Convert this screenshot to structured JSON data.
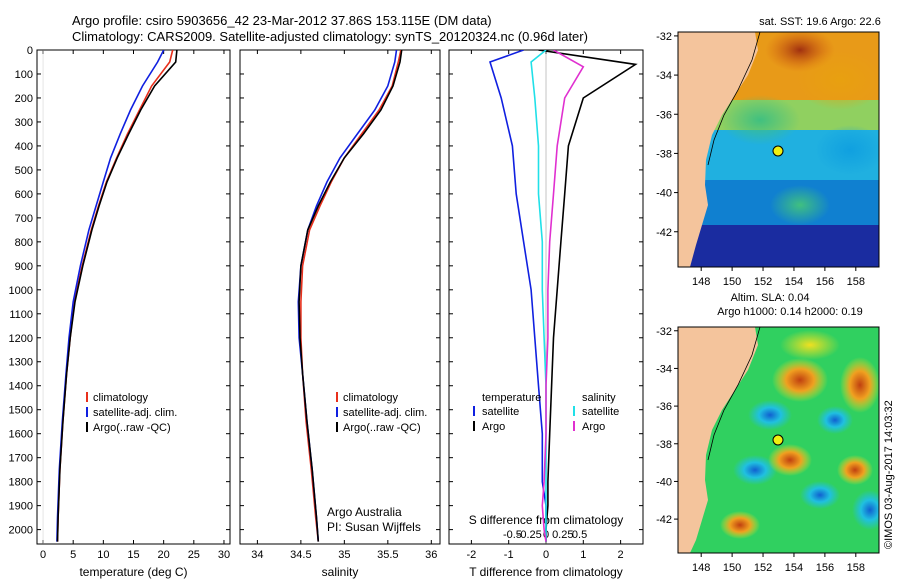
{
  "header": {
    "line1": "Argo profile: csiro 5903656_42 23-Mar-2012 37.86S 153.115E (DM data)",
    "line2": "Climatology: CARS2009. Satellite-adjusted climatology: synTS_20120324.nc (0.96d later)"
  },
  "credits": {
    "org": "Argo Australia",
    "pi": "PI: Susan Wijffels",
    "stamp": "©IMOS 03-Aug-2017 14:03:32"
  },
  "colors": {
    "clim": "#e8301c",
    "sat": "#1020e0",
    "argo": "#000000",
    "sat_s": "#20e0e8",
    "argo_s": "#e030d0",
    "land": "#f4c49c",
    "ocean_warm": "#f0a020",
    "ocean_cool": "#20c0e0"
  },
  "chart_data": [
    {
      "id": "temperature",
      "type": "line",
      "xlabel": "temperature (deg C)",
      "ylabel": "",
      "xlim": [
        -1,
        31
      ],
      "ylim": [
        2060,
        0
      ],
      "xticks": [
        "0",
        "5",
        "10",
        "15",
        "20",
        "25",
        "30"
      ],
      "yticks": [
        "0",
        "100",
        "200",
        "300",
        "400",
        "500",
        "600",
        "700",
        "800",
        "900",
        "1000",
        "1100",
        "1200",
        "1300",
        "1400",
        "1500",
        "1600",
        "1700",
        "1800",
        "1900",
        "2000"
      ],
      "legend": [
        "climatology",
        "satellite-adj. clim.",
        "Argo(..raw -QC)"
      ],
      "series": [
        {
          "name": "climatology",
          "color": "#e8301c",
          "x": [
            21.5,
            21.0,
            18.0,
            16.0,
            14.0,
            12.2,
            10.5,
            9.2,
            8.0,
            6.5,
            5.2,
            4.5,
            3.9,
            3.3,
            2.8,
            2.5,
            2.4
          ],
          "y": [
            0,
            50,
            150,
            250,
            350,
            450,
            550,
            650,
            750,
            900,
            1050,
            1200,
            1350,
            1550,
            1750,
            1950,
            2050
          ]
        },
        {
          "name": "satellite-adj. clim.",
          "color": "#1020e0",
          "x": [
            20.0,
            19.0,
            16.5,
            14.5,
            12.8,
            11.2,
            10.0,
            8.8,
            7.6,
            6.2,
            5.0,
            4.3,
            3.8,
            3.2,
            2.7,
            2.4,
            2.3
          ],
          "y": [
            0,
            50,
            150,
            250,
            350,
            450,
            550,
            650,
            750,
            900,
            1050,
            1200,
            1350,
            1550,
            1750,
            1950,
            2050
          ]
        },
        {
          "name": "Argo(..raw -QC)",
          "color": "#000000",
          "x": [
            22.2,
            22.0,
            18.5,
            16.2,
            14.2,
            12.3,
            10.6,
            9.3,
            8.1,
            6.6,
            5.3,
            4.5,
            3.9,
            3.3,
            2.8,
            2.5,
            2.4
          ],
          "y": [
            0,
            50,
            150,
            250,
            350,
            450,
            550,
            650,
            750,
            900,
            1050,
            1200,
            1350,
            1550,
            1750,
            1950,
            2050
          ]
        }
      ]
    },
    {
      "id": "salinity",
      "type": "line",
      "xlabel": "salinity",
      "xlim": [
        33.8,
        36.1
      ],
      "ylim": [
        2060,
        0
      ],
      "xticks": [
        "34",
        "34.5",
        "35",
        "35.5",
        "36"
      ],
      "legend": [
        "climatology",
        "satellite-adj. clim.",
        "Argo(..raw -QC)"
      ],
      "series": [
        {
          "name": "climatology",
          "color": "#e8301c",
          "x": [
            35.65,
            35.62,
            35.55,
            35.4,
            35.2,
            35.0,
            34.85,
            34.72,
            34.6,
            34.52,
            34.5,
            34.5,
            34.52,
            34.56,
            34.62,
            34.67,
            34.7
          ],
          "y": [
            0,
            50,
            150,
            250,
            350,
            450,
            550,
            650,
            750,
            900,
            1050,
            1200,
            1350,
            1550,
            1750,
            1950,
            2050
          ]
        },
        {
          "name": "satellite-adj. clim.",
          "color": "#1020e0",
          "x": [
            35.6,
            35.58,
            35.5,
            35.35,
            35.15,
            34.95,
            34.8,
            34.68,
            34.58,
            34.5,
            34.47,
            34.48,
            34.52,
            34.57,
            34.63,
            34.68,
            34.7
          ],
          "y": [
            0,
            50,
            150,
            250,
            350,
            450,
            550,
            650,
            750,
            900,
            1050,
            1200,
            1350,
            1550,
            1750,
            1950,
            2050
          ]
        },
        {
          "name": "Argo(..raw -QC)",
          "color": "#000000",
          "x": [
            35.66,
            35.64,
            35.56,
            35.42,
            35.22,
            35.0,
            34.84,
            34.7,
            34.58,
            34.5,
            34.48,
            34.49,
            34.52,
            34.57,
            34.63,
            34.68,
            34.7
          ],
          "y": [
            0,
            50,
            150,
            250,
            350,
            450,
            550,
            650,
            750,
            900,
            1050,
            1200,
            1350,
            1550,
            1750,
            1950,
            2050
          ]
        }
      ]
    },
    {
      "id": "difference",
      "type": "line",
      "xlabel": "T difference from climatology",
      "xlabel_top": "S difference from climatology",
      "xlim": [
        -2.6,
        2.6
      ],
      "ylim": [
        2060,
        0
      ],
      "xticks": [
        "-2",
        "-1",
        "0",
        "1",
        "2"
      ],
      "xticks_top": [
        "-0.5",
        "-0.25",
        "0",
        "0.25",
        "0.5"
      ],
      "legend_t": {
        "title": "temperature",
        "items": [
          "satellite",
          "Argo"
        ]
      },
      "legend_s": {
        "title": "salinity",
        "items": [
          "satellite",
          "Argo"
        ]
      },
      "series": [
        {
          "name": "temperature satellite",
          "color": "#1020e0",
          "x": [
            -0.6,
            -1.5,
            -1.2,
            -0.9,
            -0.8,
            -0.6,
            -0.4,
            -0.3,
            -0.2,
            -0.1,
            -0.1,
            0.0,
            0.0,
            0.0
          ],
          "y": [
            0,
            50,
            200,
            400,
            600,
            800,
            1000,
            1200,
            1400,
            1600,
            1800,
            1900,
            2000,
            2050
          ]
        },
        {
          "name": "temperature Argo",
          "color": "#000000",
          "x": [
            -0.2,
            2.4,
            1.0,
            0.6,
            0.5,
            0.4,
            0.3,
            0.2,
            0.15,
            0.1,
            0.05,
            0.05,
            0.0,
            0.0
          ],
          "y": [
            0,
            60,
            200,
            400,
            600,
            800,
            1000,
            1200,
            1400,
            1600,
            1800,
            1900,
            2000,
            2050
          ]
        },
        {
          "name": "salinity satellite",
          "color": "#20e0e8",
          "x": [
            0.0,
            -0.4,
            -0.3,
            -0.2,
            -0.2,
            -0.1,
            -0.1,
            -0.05,
            0.0,
            0.0,
            0.0,
            0.0,
            0.0,
            0.0
          ],
          "y": [
            0,
            50,
            200,
            400,
            600,
            800,
            1000,
            1200,
            1400,
            1600,
            1800,
            1900,
            2000,
            2050
          ]
        },
        {
          "name": "salinity Argo",
          "color": "#e030d0",
          "x": [
            0.2,
            1.0,
            0.5,
            0.3,
            0.2,
            0.1,
            0.05,
            0.05,
            0.0,
            0.0,
            -0.05,
            -0.1,
            -0.05,
            0.0
          ],
          "y": [
            0,
            70,
            200,
            400,
            600,
            800,
            1000,
            1200,
            1400,
            1600,
            1800,
            1900,
            2000,
            2050
          ]
        }
      ]
    },
    {
      "id": "sst_map",
      "type": "heatmap",
      "title": "sat. SST: 19.6  Argo: 22.6",
      "xlim": [
        146.5,
        159.5
      ],
      "ylim": [
        -43.8,
        -31.8
      ],
      "xticks": [
        "148",
        "150",
        "152",
        "154",
        "156",
        "158"
      ],
      "yticks": [
        "-32",
        "-34",
        "-36",
        "-38",
        "-40",
        "-42"
      ],
      "marker": {
        "lon": 153.115,
        "lat": -37.86
      }
    },
    {
      "id": "sla_map",
      "type": "heatmap",
      "title": "Altim. SLA: 0.04",
      "subtitle": "Argo h1000: 0.14  h2000: 0.19",
      "xlim": [
        146.5,
        159.5
      ],
      "ylim": [
        -43.8,
        -31.8
      ],
      "xticks": [
        "148",
        "150",
        "152",
        "154",
        "156",
        "158"
      ],
      "yticks": [
        "-32",
        "-34",
        "-36",
        "-38",
        "-40",
        "-42"
      ],
      "marker": {
        "lon": 153.115,
        "lat": -37.86
      }
    }
  ]
}
